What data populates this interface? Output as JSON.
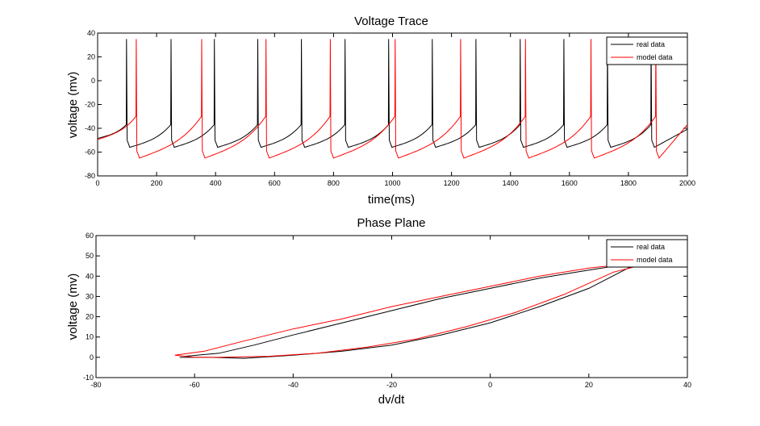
{
  "chart_data": [
    {
      "type": "line",
      "title": "Voltage Trace",
      "xlabel": "time(ms)",
      "ylabel": "voltage (mv)",
      "xlim": [
        0,
        2000
      ],
      "ylim": [
        -80,
        40
      ],
      "xticks": [
        0,
        200,
        400,
        600,
        800,
        1000,
        1200,
        1400,
        1600,
        1800,
        2000
      ],
      "yticks": [
        -80,
        -60,
        -40,
        -20,
        0,
        20,
        40
      ],
      "legend": "top-right",
      "series": [
        {
          "name": "real data",
          "color": "#000000",
          "spike_times_ms": [
            97,
            248,
            395,
            542,
            690,
            838,
            986,
            1134,
            1282,
            1432,
            1580,
            1728,
            1876
          ],
          "spike_peak_mv": 35,
          "trough_mv": -56,
          "threshold_mv": -37
        },
        {
          "name": "model data",
          "color": "#ff0000",
          "spike_times_ms": [
            130,
            352,
            570,
            788,
            1008,
            1230,
            1450,
            1672,
            1892
          ],
          "spike_peak_mv": 35,
          "trough_mv": -65,
          "threshold_mv": -30
        }
      ]
    },
    {
      "type": "line",
      "title": "Phase Plane",
      "xlabel": "dv/dt",
      "ylabel": "voltage (mv)",
      "xlim": [
        -80,
        40
      ],
      "ylim": [
        -10,
        60
      ],
      "xticks": [
        -80,
        -60,
        -40,
        -20,
        0,
        20,
        40
      ],
      "yticks": [
        -10,
        0,
        10,
        20,
        30,
        40,
        50,
        60
      ],
      "legend": "top-right",
      "series": [
        {
          "name": "real data",
          "color": "#000000",
          "x": [
            -63,
            -57,
            -50,
            -40,
            -30,
            -20,
            -10,
            0,
            10,
            20,
            28,
            31,
            28,
            20,
            10,
            0,
            -10,
            -20,
            -30,
            -40,
            -48,
            -55,
            -62
          ],
          "y": [
            0,
            0,
            -0.5,
            1,
            3,
            6,
            11,
            17,
            25,
            34,
            44,
            46,
            46,
            43,
            39,
            34,
            29,
            23,
            17,
            11,
            6,
            2,
            0.5
          ]
        },
        {
          "name": "model data",
          "color": "#ff0000",
          "x": [
            -64,
            -60,
            -55,
            -45,
            -35,
            -25,
            -15,
            -5,
            5,
            15,
            25,
            30,
            28,
            20,
            10,
            0,
            -10,
            -20,
            -30,
            -40,
            -50,
            -58,
            -64
          ],
          "y": [
            1,
            0,
            0,
            0.5,
            2,
            5,
            9,
            15,
            22,
            31,
            42,
            45,
            46,
            44,
            40,
            35,
            30,
            25,
            19,
            14,
            8,
            3,
            1
          ]
        }
      ]
    }
  ]
}
